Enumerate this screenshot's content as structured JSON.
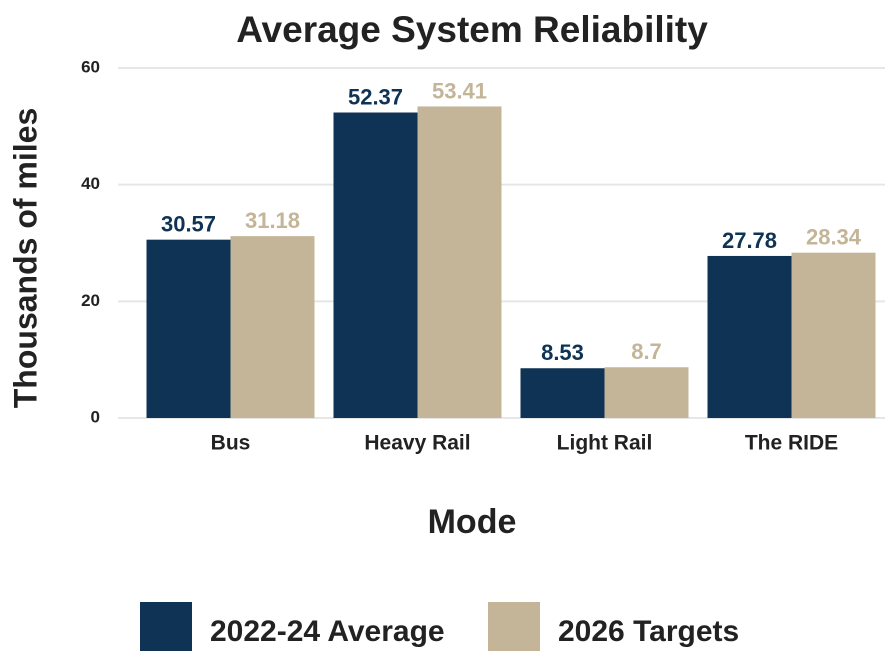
{
  "chart_data": {
    "type": "bar",
    "title": "Average System Reliability",
    "x_label": "Mode",
    "y_label": "Thousands of miles",
    "categories": [
      "Bus",
      "Heavy Rail",
      "Light Rail",
      "The RIDE"
    ],
    "series": [
      {
        "name": "2022-24 Average",
        "color": "#0e3354",
        "values": [
          30.57,
          52.37,
          8.53,
          27.78
        ]
      },
      {
        "name": "2026 Targets",
        "color": "#c4b598",
        "values": [
          31.18,
          53.41,
          8.7,
          28.34
        ]
      }
    ],
    "ylim": [
      0,
      60
    ],
    "yticks": [
      0,
      20,
      40,
      60
    ],
    "grid": true,
    "legend": "bottom"
  }
}
